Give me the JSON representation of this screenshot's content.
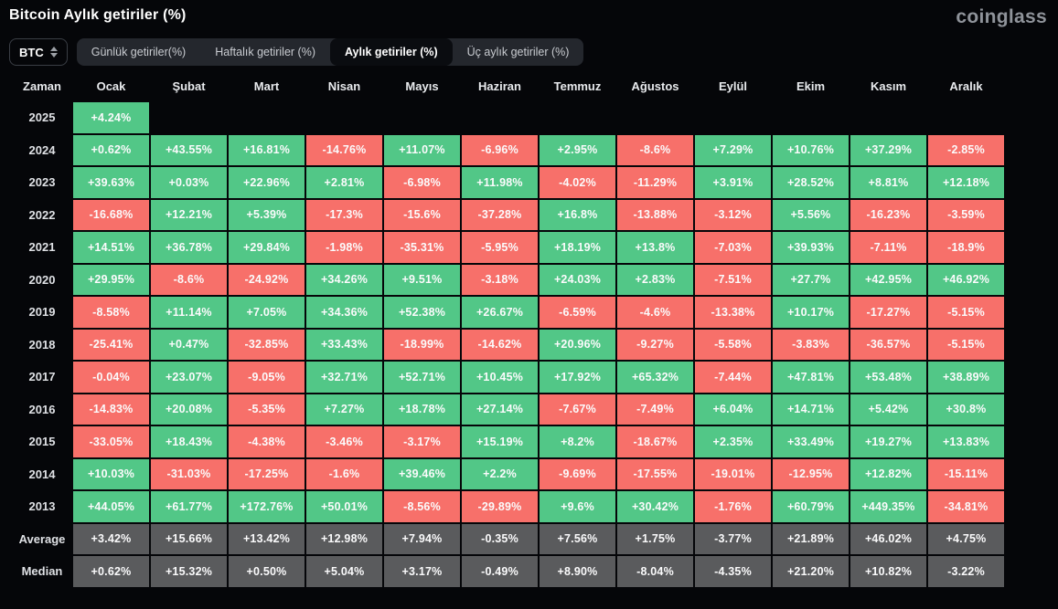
{
  "page": {
    "title": "Bitcoin Aylık getiriler (%)",
    "brand": "coinglass"
  },
  "colors": {
    "positive": "#52C787",
    "negative": "#F7706A",
    "neutral": "#5A5B5D",
    "background": "#050609"
  },
  "controls": {
    "symbol_select": {
      "value": "BTC"
    },
    "tabs": [
      {
        "label": "Günlük getiriler(%)",
        "active": false
      },
      {
        "label": "Haftalık getiriler (%)",
        "active": false
      },
      {
        "label": "Aylık getiriler (%)",
        "active": true
      },
      {
        "label": "Üç aylık getiriler (%)",
        "active": false
      }
    ]
  },
  "table": {
    "columns": [
      "Zaman",
      "Ocak",
      "Şubat",
      "Mart",
      "Nisan",
      "Mayıs",
      "Haziran",
      "Temmuz",
      "Ağustos",
      "Eylül",
      "Ekim",
      "Kasım",
      "Aralık"
    ],
    "rows": [
      {
        "label": "2025",
        "type": "year",
        "values": [
          "+4.24%",
          "",
          "",
          "",
          "",
          "",
          "",
          "",
          "",
          "",
          "",
          ""
        ]
      },
      {
        "label": "2024",
        "type": "year",
        "values": [
          "+0.62%",
          "+43.55%",
          "+16.81%",
          "-14.76%",
          "+11.07%",
          "-6.96%",
          "+2.95%",
          "-8.6%",
          "+7.29%",
          "+10.76%",
          "+37.29%",
          "-2.85%"
        ]
      },
      {
        "label": "2023",
        "type": "year",
        "values": [
          "+39.63%",
          "+0.03%",
          "+22.96%",
          "+2.81%",
          "-6.98%",
          "+11.98%",
          "-4.02%",
          "-11.29%",
          "+3.91%",
          "+28.52%",
          "+8.81%",
          "+12.18%"
        ]
      },
      {
        "label": "2022",
        "type": "year",
        "values": [
          "-16.68%",
          "+12.21%",
          "+5.39%",
          "-17.3%",
          "-15.6%",
          "-37.28%",
          "+16.8%",
          "-13.88%",
          "-3.12%",
          "+5.56%",
          "-16.23%",
          "-3.59%"
        ]
      },
      {
        "label": "2021",
        "type": "year",
        "values": [
          "+14.51%",
          "+36.78%",
          "+29.84%",
          "-1.98%",
          "-35.31%",
          "-5.95%",
          "+18.19%",
          "+13.8%",
          "-7.03%",
          "+39.93%",
          "-7.11%",
          "-18.9%"
        ]
      },
      {
        "label": "2020",
        "type": "year",
        "values": [
          "+29.95%",
          "-8.6%",
          "-24.92%",
          "+34.26%",
          "+9.51%",
          "-3.18%",
          "+24.03%",
          "+2.83%",
          "-7.51%",
          "+27.7%",
          "+42.95%",
          "+46.92%"
        ]
      },
      {
        "label": "2019",
        "type": "year",
        "values": [
          "-8.58%",
          "+11.14%",
          "+7.05%",
          "+34.36%",
          "+52.38%",
          "+26.67%",
          "-6.59%",
          "-4.6%",
          "-13.38%",
          "+10.17%",
          "-17.27%",
          "-5.15%"
        ]
      },
      {
        "label": "2018",
        "type": "year",
        "values": [
          "-25.41%",
          "+0.47%",
          "-32.85%",
          "+33.43%",
          "-18.99%",
          "-14.62%",
          "+20.96%",
          "-9.27%",
          "-5.58%",
          "-3.83%",
          "-36.57%",
          "-5.15%"
        ]
      },
      {
        "label": "2017",
        "type": "year",
        "values": [
          "-0.04%",
          "+23.07%",
          "-9.05%",
          "+32.71%",
          "+52.71%",
          "+10.45%",
          "+17.92%",
          "+65.32%",
          "-7.44%",
          "+47.81%",
          "+53.48%",
          "+38.89%"
        ]
      },
      {
        "label": "2016",
        "type": "year",
        "values": [
          "-14.83%",
          "+20.08%",
          "-5.35%",
          "+7.27%",
          "+18.78%",
          "+27.14%",
          "-7.67%",
          "-7.49%",
          "+6.04%",
          "+14.71%",
          "+5.42%",
          "+30.8%"
        ]
      },
      {
        "label": "2015",
        "type": "year",
        "values": [
          "-33.05%",
          "+18.43%",
          "-4.38%",
          "-3.46%",
          "-3.17%",
          "+15.19%",
          "+8.2%",
          "-18.67%",
          "+2.35%",
          "+33.49%",
          "+19.27%",
          "+13.83%"
        ]
      },
      {
        "label": "2014",
        "type": "year",
        "values": [
          "+10.03%",
          "-31.03%",
          "-17.25%",
          "-1.6%",
          "+39.46%",
          "+2.2%",
          "-9.69%",
          "-17.55%",
          "-19.01%",
          "-12.95%",
          "+12.82%",
          "-15.11%"
        ]
      },
      {
        "label": "2013",
        "type": "year",
        "values": [
          "+44.05%",
          "+61.77%",
          "+172.76%",
          "+50.01%",
          "-8.56%",
          "-29.89%",
          "+9.6%",
          "+30.42%",
          "-1.76%",
          "+60.79%",
          "+449.35%",
          "-34.81%"
        ]
      },
      {
        "label": "Average",
        "type": "summary",
        "values": [
          "+3.42%",
          "+15.66%",
          "+13.42%",
          "+12.98%",
          "+7.94%",
          "-0.35%",
          "+7.56%",
          "+1.75%",
          "-3.77%",
          "+21.89%",
          "+46.02%",
          "+4.75%"
        ]
      },
      {
        "label": "Median",
        "type": "summary",
        "values": [
          "+0.62%",
          "+15.32%",
          "+0.50%",
          "+5.04%",
          "+3.17%",
          "-0.49%",
          "+8.90%",
          "-8.04%",
          "-4.35%",
          "+21.20%",
          "+10.82%",
          "-3.22%"
        ]
      }
    ]
  }
}
